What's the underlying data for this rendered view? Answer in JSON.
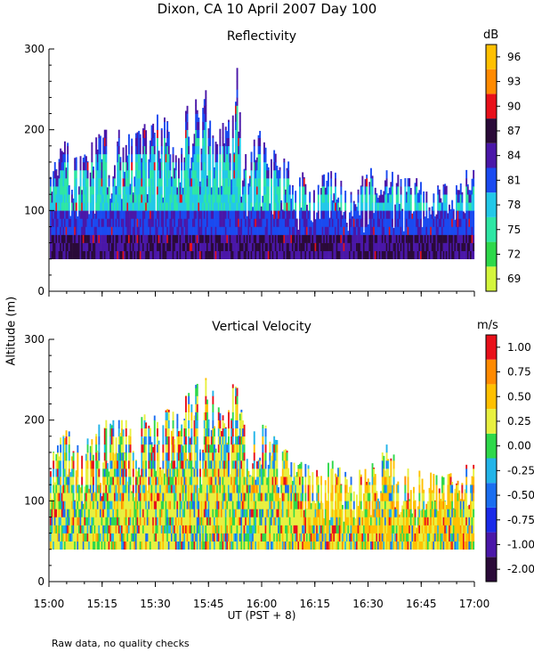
{
  "chart_data": [
    {
      "type": "heatmap",
      "panel": "top",
      "suptitle": "Dixon, CA 10 April 2007  Day 100",
      "title": "Reflectivity",
      "ylabel": "Altitude (m)",
      "xlim": [
        "15:00",
        "17:00"
      ],
      "ylim": [
        0,
        300
      ],
      "x_ticks": [
        "15:00",
        "15:15",
        "15:30",
        "15:45",
        "16:00",
        "16:15",
        "16:30",
        "16:45",
        "17:00"
      ],
      "y_ticks": [
        0,
        100,
        200,
        300
      ],
      "colorbar": {
        "unit": "dB",
        "ticks": [
          69,
          72,
          75,
          78,
          81,
          84,
          87,
          90,
          93,
          96
        ],
        "colors": [
          "#d4f53c",
          "#2ed84a",
          "#2ee6a4",
          "#22c8e8",
          "#1a4af0",
          "#4a17a8",
          "#2a0a38",
          "#e8101a",
          "#ff8a00",
          "#ffc000"
        ]
      },
      "data_floor_m": 40,
      "echo_top_profile": {
        "times": [
          "15:00",
          "15:05",
          "15:10",
          "15:15",
          "15:20",
          "15:25",
          "15:30",
          "15:35",
          "15:40",
          "15:45",
          "15:50",
          "15:53",
          "15:55",
          "16:00",
          "16:05",
          "16:10",
          "16:15",
          "16:20",
          "16:25",
          "16:30",
          "16:35",
          "16:40",
          "16:45",
          "16:50",
          "16:55",
          "17:00"
        ],
        "max_altitude_m": [
          160,
          190,
          175,
          200,
          200,
          200,
          220,
          210,
          240,
          255,
          200,
          280,
          190,
          200,
          170,
          150,
          140,
          150,
          130,
          150,
          170,
          140,
          140,
          130,
          140,
          160
        ]
      }
    },
    {
      "type": "heatmap",
      "panel": "bottom",
      "title": "Vertical Velocity",
      "ylabel": "Altitude (m)",
      "xlabel": "UT  (PST + 8)",
      "xlim": [
        "15:00",
        "17:00"
      ],
      "ylim": [
        0,
        300
      ],
      "x_ticks": [
        "15:00",
        "15:15",
        "15:30",
        "15:45",
        "16:00",
        "16:15",
        "16:30",
        "16:45",
        "17:00"
      ],
      "y_ticks": [
        0,
        100,
        200,
        300
      ],
      "colorbar": {
        "unit": "m/s",
        "ticks": [
          "-2.00",
          "-1.00",
          "-0.75",
          "-0.50",
          "-0.25",
          "0.00",
          "0.25",
          "0.50",
          "0.75",
          "1.00"
        ],
        "colors": [
          "#2a0a38",
          "#4a17a8",
          "#1a2ae8",
          "#1a6ef0",
          "#22b4e8",
          "#2ed84a",
          "#e8f040",
          "#ffc000",
          "#ff8a00",
          "#e8101a"
        ]
      },
      "data_floor_m": 40
    }
  ],
  "footer_note": "Raw data, no quality checks",
  "labels": {
    "main_title": "Dixon, CA 10 April 2007  Day 100",
    "top_title": "Reflectivity",
    "bottom_title": "Vertical Velocity",
    "y_axis": "Altitude (m)",
    "x_axis": "UT  (PST + 8)",
    "top_unit": "dB",
    "bottom_unit": "m/s"
  }
}
